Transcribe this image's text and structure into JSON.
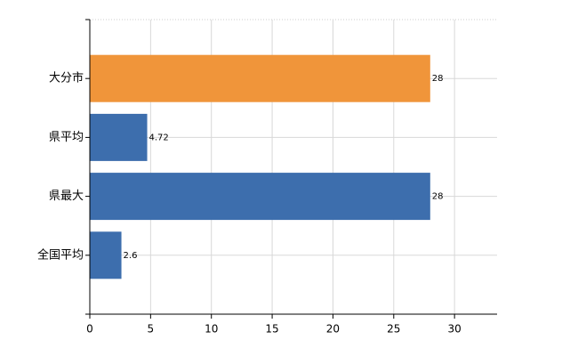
{
  "chart_data": {
    "type": "bar",
    "orientation": "horizontal",
    "categories": [
      "大分市",
      "県平均",
      "県最大",
      "全国平均"
    ],
    "values": [
      28,
      4.72,
      28,
      2.6
    ],
    "colors": [
      "#f0953a",
      "#3d6ead",
      "#3d6ead",
      "#3d6ead"
    ],
    "xlim": [
      0,
      33.5
    ],
    "xticks": [
      0,
      5,
      10,
      15,
      20,
      25,
      30
    ],
    "grid": true
  }
}
